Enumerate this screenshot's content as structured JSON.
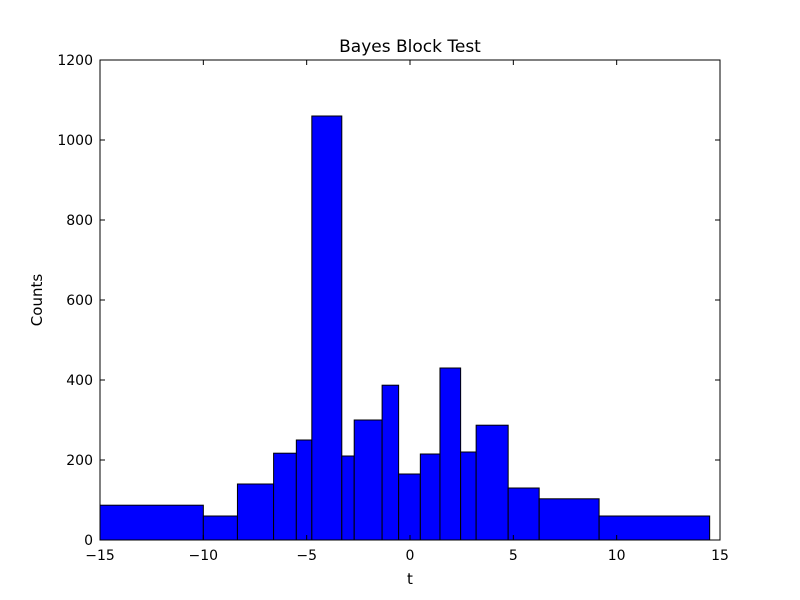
{
  "chart_data": {
    "type": "bar",
    "title": "Bayes Block Test",
    "xlabel": "t",
    "ylabel": "Counts",
    "xlim": [
      -15,
      15
    ],
    "ylim": [
      0,
      1200
    ],
    "xticks": [
      -15,
      -10,
      -5,
      0,
      5,
      10,
      15
    ],
    "xtick_labels": [
      "−15",
      "−10",
      "−5",
      "0",
      "5",
      "10",
      "15"
    ],
    "yticks": [
      0,
      200,
      400,
      600,
      800,
      1000,
      1200
    ],
    "ytick_labels": [
      "0",
      "200",
      "400",
      "600",
      "800",
      "1000",
      "1200"
    ],
    "grid": false,
    "bar_color": "#0000ff",
    "edge_color": "#000000",
    "bins": [
      {
        "x0": -15.0,
        "x1": -10.0,
        "value": 87
      },
      {
        "x0": -10.0,
        "x1": -8.35,
        "value": 60
      },
      {
        "x0": -8.35,
        "x1": -6.6,
        "value": 140
      },
      {
        "x0": -6.6,
        "x1": -5.5,
        "value": 217
      },
      {
        "x0": -5.5,
        "x1": -4.75,
        "value": 250
      },
      {
        "x0": -4.75,
        "x1": -3.3,
        "value": 1060
      },
      {
        "x0": -3.3,
        "x1": -2.7,
        "value": 210
      },
      {
        "x0": -2.7,
        "x1": -1.35,
        "value": 300
      },
      {
        "x0": -1.35,
        "x1": -0.55,
        "value": 387
      },
      {
        "x0": -0.55,
        "x1": 0.5,
        "value": 165
      },
      {
        "x0": 0.5,
        "x1": 1.45,
        "value": 215
      },
      {
        "x0": 1.45,
        "x1": 2.45,
        "value": 430
      },
      {
        "x0": 2.45,
        "x1": 3.2,
        "value": 220
      },
      {
        "x0": 3.2,
        "x1": 4.75,
        "value": 287
      },
      {
        "x0": 4.75,
        "x1": 6.25,
        "value": 130
      },
      {
        "x0": 6.25,
        "x1": 9.15,
        "value": 103
      },
      {
        "x0": 9.15,
        "x1": 14.5,
        "value": 60
      }
    ]
  }
}
